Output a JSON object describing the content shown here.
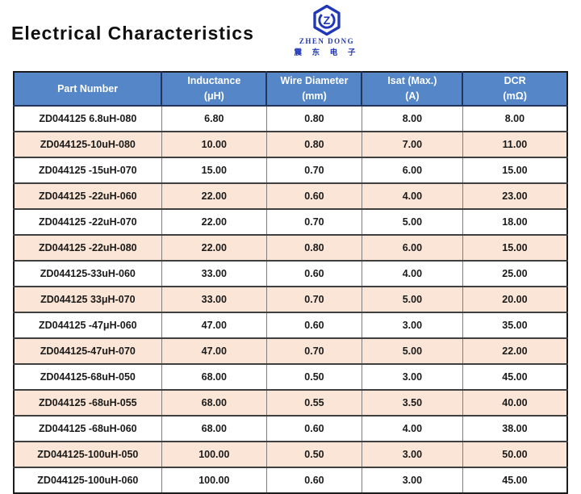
{
  "page": {
    "title": "Electrical Characteristics"
  },
  "logo": {
    "icon": "zhendong-hexagon-z-logo",
    "name": "ZHEN DONG",
    "chinese": "震 东 电 子"
  },
  "colors": {
    "header_bg": "#5586C8",
    "header_border": "#24355C",
    "header_text": "#FFFFFF",
    "row_alt_bg": "#FBE5D6",
    "row_bg": "#FFFFFF",
    "logo_blue": "#2038B8"
  },
  "table": {
    "columns": [
      {
        "label": "Part Number",
        "unit": ""
      },
      {
        "label": "Inductance",
        "unit": "(μH)"
      },
      {
        "label": "Wire Diameter",
        "unit": "(mm)"
      },
      {
        "label": "Isat (Max.)",
        "unit": "(A)"
      },
      {
        "label": "DCR",
        "unit": "(mΩ)"
      }
    ],
    "rows": [
      [
        "ZD044125 6.8uH-080",
        "6.80",
        "0.80",
        "8.00",
        "8.00"
      ],
      [
        "ZD044125-10uH-080",
        "10.00",
        "0.80",
        "7.00",
        "11.00"
      ],
      [
        "ZD044125 -15uH-070",
        "15.00",
        "0.70",
        "6.00",
        "15.00"
      ],
      [
        "ZD044125 -22uH-060",
        "22.00",
        "0.60",
        "4.00",
        "23.00"
      ],
      [
        "ZD044125 -22uH-070",
        "22.00",
        "0.70",
        "5.00",
        "18.00"
      ],
      [
        "ZD044125 -22uH-080",
        "22.00",
        "0.80",
        "6.00",
        "15.00"
      ],
      [
        "ZD044125-33uH-060",
        "33.00",
        "0.60",
        "4.00",
        "25.00"
      ],
      [
        "ZD044125 33μH-070",
        "33.00",
        "0.70",
        "5.00",
        "20.00"
      ],
      [
        "ZD044125 -47μH-060",
        "47.00",
        "0.60",
        "3.00",
        "35.00"
      ],
      [
        "ZD044125-47uH-070",
        "47.00",
        "0.70",
        "5.00",
        "22.00"
      ],
      [
        "ZD044125-68uH-050",
        "68.00",
        "0.50",
        "3.00",
        "45.00"
      ],
      [
        "ZD044125 -68uH-055",
        "68.00",
        "0.55",
        "3.50",
        "40.00"
      ],
      [
        "ZD044125 -68uH-060",
        "68.00",
        "0.60",
        "4.00",
        "38.00"
      ],
      [
        "ZD044125-100uH-050",
        "100.00",
        "0.50",
        "3.00",
        "50.00"
      ],
      [
        "ZD044125-100uH-060",
        "100.00",
        "0.60",
        "3.00",
        "45.00"
      ]
    ]
  }
}
